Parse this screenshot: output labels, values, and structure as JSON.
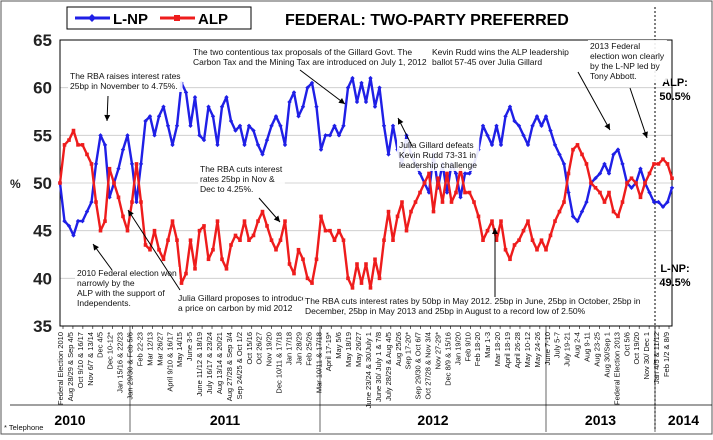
{
  "chart_data": {
    "type": "line",
    "title": "FEDERAL: TWO-PARTY PREFERRED",
    "ylabel": "%",
    "xlabel": "",
    "ylim": [
      35,
      65
    ],
    "y_ticks": [
      35,
      40,
      45,
      50,
      55,
      60,
      65
    ],
    "grid": "horizontal",
    "legend_position": "top-left",
    "colors": {
      "lnp": "#1f1fe6",
      "alp": "#ee1c1c",
      "axis": "#000000",
      "grid": "#c8c8c8"
    },
    "x_tick_labels": [
      "Federal Election 2010",
      "Aug 28/29 & Sep 4/5",
      "Oct 9/10 & 16/17",
      "Nov 6/7 & 13/14",
      "Dec 4/5",
      "Dec 10-12*",
      "Jan 15/16 & 22/23",
      "Jan 29/30 & Feb 5/6",
      "Feb 22-23",
      "Mar 12/13",
      "Mar 26/27",
      "April 9/10 & 16/17",
      "May 14/15",
      "June 3-5",
      "June 11/12 & 18/19",
      "July 16/17 & 23/24",
      "Aug 13/14 & 20/21",
      "Aug 27/28 & Sep 3/4",
      "Sep 24/25 & Oct 1/2",
      "Oct 15/16",
      "Oct 26/27",
      "Nov 19/20",
      "Dec 10/11 & 17/18",
      "Jan 17/18",
      "Jan 28/29",
      "Feb 25/26",
      "Mar 10/11 & 17/18",
      "April 17-19*",
      "May 5/6",
      "May 18/19",
      "May 26/27",
      "June 23/24 & 30/July 1",
      "June 30/ July 1 & 7/8",
      "July 28/29 & Aug 4/5",
      "Aug 25/26",
      "Sep 17-20*",
      "Sep 29/30 & Oct 6/7",
      "Oct 27/28 & Nov 3/4",
      "Nov 27-29*",
      "Dec 8/9 & 15/16",
      "Jan 19/20",
      "Feb 9/10",
      "Feb 18-20",
      "Mar 1-3",
      "Mar 18-20",
      "April 18-19",
      "April 26-28",
      "May 10-12",
      "May 24-26",
      "June 7-10",
      "July 5-7",
      "July 19-21",
      "Aug 2-4",
      "Aug 9-11",
      "Aug 23-25",
      "Aug 30/Sep 1",
      "Federal Election 2013",
      "Oct 5/6",
      "Oct 19/20",
      "Nov 30/ Dec 1",
      "Jan 4/5 & 11/12",
      "Feb 1/2 & 8/9"
    ],
    "years": [
      "2010",
      "2011",
      "2012",
      "2013",
      "2014"
    ],
    "series": [
      {
        "name": "L-NP",
        "values": [
          50,
          46,
          45.5,
          44.5,
          46,
          46,
          47,
          48,
          52,
          55,
          54,
          48.5,
          50,
          51.5,
          53.5,
          55,
          52,
          48,
          52,
          56.5,
          57,
          55,
          57,
          58,
          56,
          54,
          56,
          60.5,
          59.5,
          56,
          59,
          55,
          54.5,
          58,
          57,
          54,
          58,
          59,
          56.5,
          55.5,
          56,
          54,
          56,
          55.5,
          54,
          53,
          54.5,
          56,
          57,
          56,
          54,
          58.5,
          59.5,
          57,
          58,
          60,
          60.5,
          58,
          53.5,
          55,
          55,
          56,
          55,
          56,
          60,
          61,
          58.5,
          60.5,
          58.5,
          61,
          58,
          60,
          56,
          53,
          56,
          53.5,
          52,
          55,
          53,
          52,
          51,
          50,
          49,
          53,
          49.5,
          52,
          49,
          52,
          51,
          48.5,
          51,
          51,
          52,
          53.5,
          56,
          55,
          54,
          56,
          54,
          57,
          58,
          56.5,
          56,
          55,
          54,
          56,
          57,
          56,
          57,
          55.5,
          54,
          53,
          52,
          49,
          46.5,
          46,
          47,
          48,
          50,
          50.5,
          51,
          52,
          51,
          53,
          53.5,
          52,
          50,
          49.5,
          50,
          51.5,
          50,
          49,
          48,
          48,
          47.5,
          48,
          49.5
        ]
      },
      {
        "name": "ALP",
        "values": [
          50,
          54,
          54.5,
          55.5,
          54,
          54,
          53,
          52,
          48,
          45,
          46,
          51.5,
          50,
          48.5,
          46.5,
          45,
          48,
          52,
          48,
          43.5,
          43,
          45,
          43,
          42,
          44,
          46,
          44,
          39.5,
          40.5,
          44,
          41,
          45,
          45.5,
          42,
          43,
          46,
          42,
          41,
          43.5,
          44.5,
          44,
          46,
          44,
          44.5,
          46,
          47,
          45.5,
          44,
          43,
          44,
          46,
          41.5,
          40.5,
          43,
          42,
          40,
          39.5,
          42,
          46.5,
          45,
          45,
          44,
          45,
          44,
          40,
          39,
          41.5,
          39.5,
          41.5,
          39,
          42,
          40,
          44,
          47,
          44,
          46.5,
          48,
          45,
          47,
          48,
          49,
          50,
          51,
          47,
          50.5,
          48,
          51,
          48,
          49,
          51.5,
          49,
          49,
          48,
          46.5,
          44,
          45,
          46,
          44,
          46,
          43,
          42,
          43.5,
          44,
          45,
          46,
          44,
          43,
          44,
          43,
          44.5,
          46,
          47,
          48,
          51,
          53.5,
          54,
          53,
          52,
          50,
          49.5,
          49,
          48,
          49,
          47,
          46.5,
          48,
          50,
          50.5,
          50,
          48.5,
          50,
          51,
          52,
          52,
          52.5,
          52,
          50.5
        ]
      }
    ],
    "end_labels": {
      "alp": "ALP:\n50.5%",
      "lnp": "L-NP:\n49.5%"
    },
    "annotations": [
      "The RBA raises interest rates\n25bp in November to 4.75%.",
      "The two contentious tax proposals of the Gillard Govt. The\nCarbon Tax and the Mining Tax are introduced on July 1, 2012",
      "Kevin Rudd wins the ALP leadership\nballot 57-45 over Julia Gillard",
      "2013 Federal\nelection won clearly\nby the L-NP led by\nTony Abbott.",
      "The RBA cuts interest\nrates 25bp in Nov &\nDec to 4.25%.",
      "Julia Gillard defeats\nKevin Rudd 73-31 in\nleadership challenge",
      "2010 Federal election won\nnarrowly by the\nALP with the support of\nIndependents.",
      "Julia Gillard proposes to introduce\na price on carbon by mid 2012",
      "The RBA cuts interest rates by 50bp in May 2012. 25bp in June, 25bp in October, 25bp in\nDecember, 25bp in May 2013 and 25bp in August to a record low of 2.50%"
    ],
    "footnote": "* Telephone"
  }
}
